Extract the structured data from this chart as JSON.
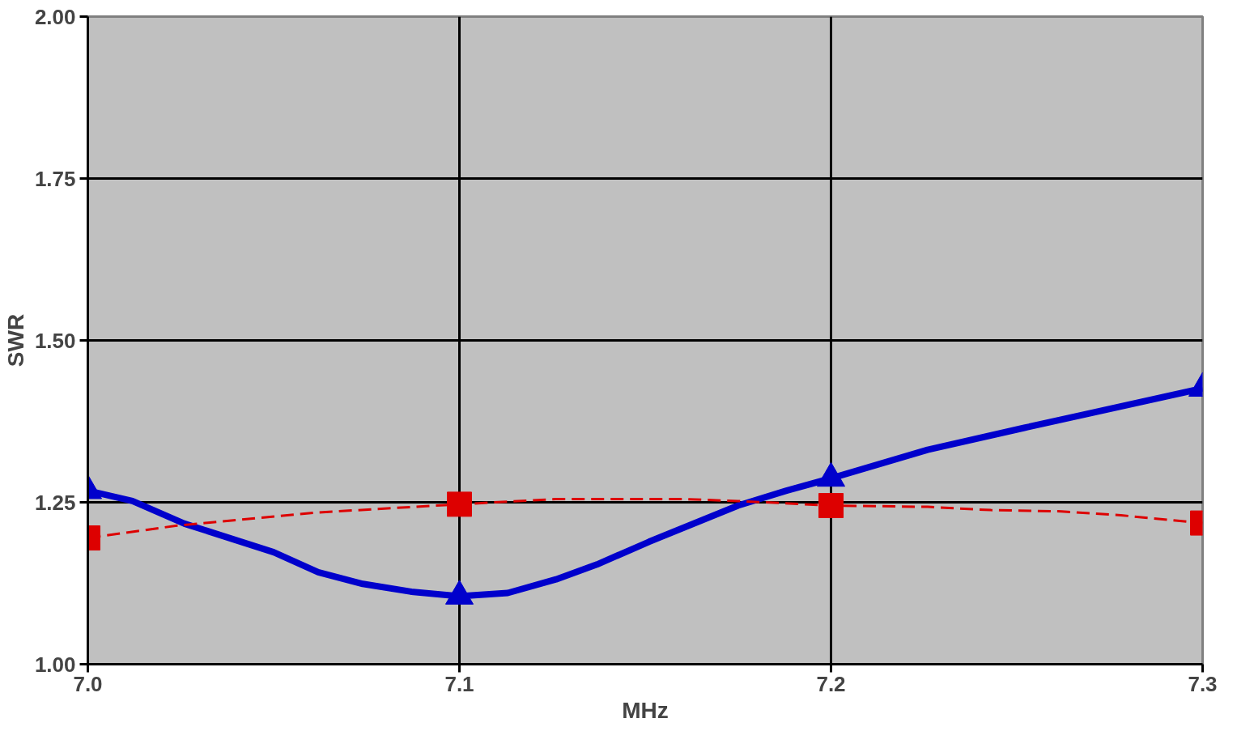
{
  "chart_data": {
    "type": "line",
    "xlabel": "MHz",
    "ylabel": "SWR",
    "x": [
      7.0,
      7.1,
      7.2,
      7.3
    ],
    "series": [
      {
        "color": "#0000cc",
        "line_style": "solid",
        "x": [
          7.0,
          7.012,
          7.026,
          7.05,
          7.062,
          7.074,
          7.087,
          7.1,
          7.113,
          7.126,
          7.137,
          7.151,
          7.175,
          7.188,
          7.2,
          7.226,
          7.252,
          7.3
        ],
        "values": [
          1.268,
          1.252,
          1.217,
          1.173,
          1.142,
          1.124,
          1.112,
          1.105,
          1.11,
          1.131,
          1.154,
          1.189,
          1.245,
          1.268,
          1.287,
          1.331,
          1.365,
          1.426
        ]
      },
      {
        "color": "#dd0000",
        "line_style": "dashed",
        "x": [
          7.0,
          7.024,
          7.061,
          7.1,
          7.113,
          7.126,
          7.16,
          7.175,
          7.2,
          7.226,
          7.243,
          7.262,
          7.278,
          7.3
        ],
        "values": [
          1.195,
          1.214,
          1.234,
          1.247,
          1.251,
          1.255,
          1.255,
          1.252,
          1.245,
          1.243,
          1.238,
          1.236,
          1.23,
          1.218
        ]
      },
      {
        "type": "scatter",
        "color": "#0000cc",
        "marker": "triangle",
        "values": [
          1.268,
          1.105,
          1.287,
          1.426
        ]
      },
      {
        "type": "scatter",
        "color": "#dd0000",
        "marker": "square",
        "values": [
          1.195,
          1.247,
          1.245,
          1.218
        ]
      }
    ],
    "xlim": [
      7.0,
      7.3
    ],
    "ylim": [
      1.0,
      2.0
    ],
    "xticks": [
      {
        "value": 7.0,
        "label": "7.0"
      },
      {
        "value": 7.1,
        "label": "7.1"
      },
      {
        "value": 7.2,
        "label": "7.2"
      },
      {
        "value": 7.3,
        "label": "7.3"
      }
    ],
    "yticks": [
      {
        "value": 1.0,
        "label": "1.00"
      },
      {
        "value": 1.25,
        "label": "1.25"
      },
      {
        "value": 1.5,
        "label": "1.50"
      },
      {
        "value": 1.75,
        "label": "1.75"
      },
      {
        "value": 2.0,
        "label": "2.00"
      }
    ],
    "grid": true
  }
}
